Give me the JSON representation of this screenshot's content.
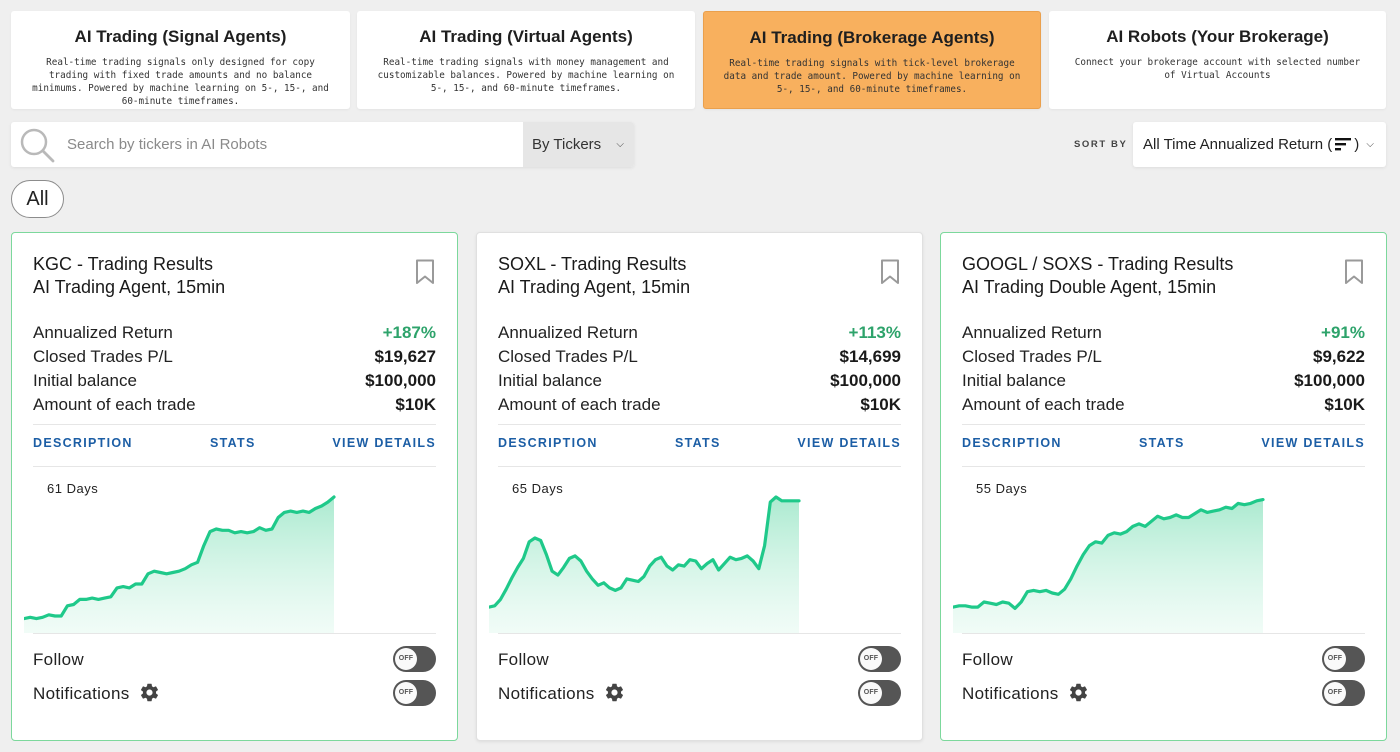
{
  "mode_tabs": [
    {
      "title": "AI Trading (Signal Agents)",
      "desc": "Real-time trading signals only designed for copy trading with fixed trade amounts and no balance minimums. Powered by machine learning on 5-, 15-, and 60-minute timeframes.",
      "active": false
    },
    {
      "title": "AI Trading (Virtual Agents)",
      "desc": "Real-time trading signals with money management and customizable balances. Powered by machine learning on 5-, 15-, and 60-minute timeframes.",
      "active": false
    },
    {
      "title": "AI Trading (Brokerage Agents)",
      "desc": "Real-time trading signals with tick-level brokerage data and trade amount. Powered by machine learning on 5-, 15-, and 60-minute timeframes.",
      "active": true
    },
    {
      "title": "AI Robots (Your Brokerage)",
      "desc": "Connect your brokerage account with selected number of Virtual Accounts",
      "active": false
    }
  ],
  "search": {
    "placeholder": "Search by tickers in AI Robots",
    "value": "",
    "mode": "By Tickers"
  },
  "sort": {
    "label": "SORT BY",
    "value_prefix": "All Time Annualized Return (",
    "value_suffix": ")"
  },
  "filters": {
    "active_chip": "All"
  },
  "card_labels": {
    "annualized_return": "Annualized Return",
    "closed_pl": "Closed Trades P/L",
    "initial_balance": "Initial balance",
    "trade_amount": "Amount of each trade",
    "description": "DESCRIPTION",
    "stats": "STATS",
    "view_details": "VIEW DETAILS",
    "follow": "Follow",
    "notifications": "Notifications",
    "toggle_off": "OFF"
  },
  "colors": {
    "accent": "#f8b05e",
    "positive": "#2ea36b",
    "link": "#1c5ea5",
    "chart_line": "#1fc98a"
  },
  "cards": [
    {
      "title_line1": "KGC - Trading Results",
      "title_line2": "AI Trading Agent, 15min",
      "annualized_return": "+187%",
      "closed_pl": "$19,627",
      "initial_balance": "$100,000",
      "trade_amount": "$10K",
      "days": "61 Days",
      "follow": false,
      "notifications": false,
      "highlight": true,
      "curve": [
        0.05,
        0.06,
        0.05,
        0.06,
        0.08,
        0.07,
        0.07,
        0.15,
        0.16,
        0.2,
        0.2,
        0.21,
        0.2,
        0.21,
        0.22,
        0.29,
        0.3,
        0.29,
        0.32,
        0.32,
        0.4,
        0.42,
        0.41,
        0.4,
        0.41,
        0.42,
        0.44,
        0.47,
        0.49,
        0.62,
        0.73,
        0.75,
        0.74,
        0.74,
        0.72,
        0.73,
        0.72,
        0.73,
        0.76,
        0.74,
        0.75,
        0.84,
        0.88,
        0.89,
        0.88,
        0.89,
        0.88,
        0.91,
        0.93,
        0.96,
        1.0
      ]
    },
    {
      "title_line1": "SOXL - Trading Results",
      "title_line2": "AI Trading Agent, 15min",
      "annualized_return": "+113%",
      "closed_pl": "$14,699",
      "initial_balance": "$100,000",
      "trade_amount": "$10K",
      "days": "65 Days",
      "follow": false,
      "notifications": false,
      "highlight": false,
      "curve": [
        0.14,
        0.15,
        0.2,
        0.28,
        0.37,
        0.45,
        0.52,
        0.65,
        0.68,
        0.66,
        0.55,
        0.42,
        0.39,
        0.45,
        0.52,
        0.54,
        0.5,
        0.42,
        0.36,
        0.31,
        0.33,
        0.29,
        0.27,
        0.29,
        0.36,
        0.35,
        0.34,
        0.38,
        0.46,
        0.51,
        0.53,
        0.46,
        0.43,
        0.47,
        0.46,
        0.51,
        0.5,
        0.44,
        0.48,
        0.51,
        0.43,
        0.48,
        0.53,
        0.51,
        0.52,
        0.54,
        0.5,
        0.44,
        0.62,
        0.96,
        1.0,
        0.97,
        0.97,
        0.97,
        0.97
      ]
    },
    {
      "title_line1": "GOOGL / SOXS - Trading Results",
      "title_line2": "AI Trading Double Agent, 15min",
      "annualized_return": "+91%",
      "closed_pl": "$9,622",
      "initial_balance": "$100,000",
      "trade_amount": "$10K",
      "days": "55 Days",
      "follow": false,
      "notifications": false,
      "highlight": true,
      "curve": [
        0.14,
        0.15,
        0.15,
        0.14,
        0.14,
        0.18,
        0.17,
        0.16,
        0.18,
        0.17,
        0.13,
        0.18,
        0.26,
        0.27,
        0.26,
        0.27,
        0.25,
        0.24,
        0.28,
        0.36,
        0.46,
        0.55,
        0.62,
        0.65,
        0.64,
        0.7,
        0.72,
        0.71,
        0.73,
        0.77,
        0.79,
        0.77,
        0.81,
        0.85,
        0.83,
        0.84,
        0.86,
        0.84,
        0.84,
        0.87,
        0.9,
        0.88,
        0.89,
        0.9,
        0.92,
        0.91,
        0.95,
        0.94,
        0.95,
        0.97,
        0.98
      ]
    }
  ]
}
